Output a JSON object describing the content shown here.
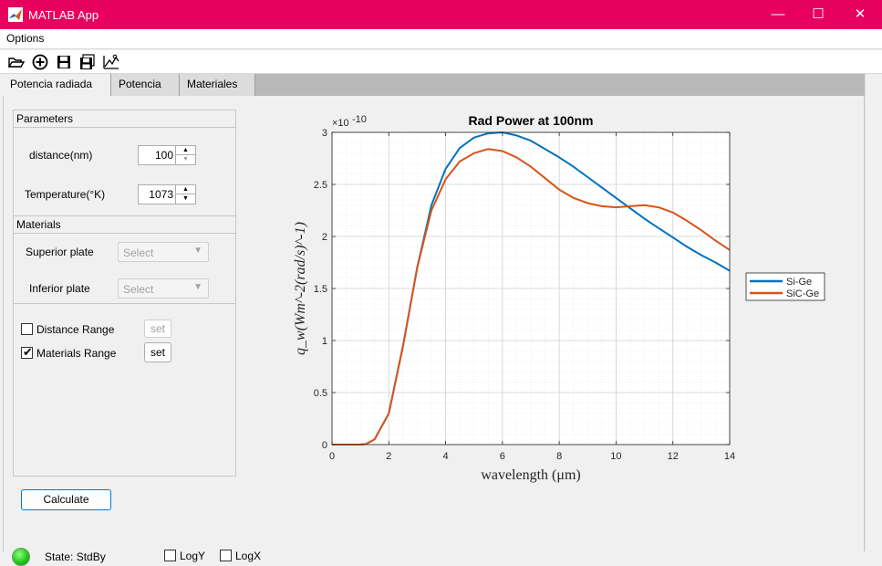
{
  "window": {
    "title": "MATLAB App",
    "controls": {
      "minimize": "—",
      "maximize": "☐",
      "close": "✕"
    }
  },
  "menu": {
    "options": "Options"
  },
  "toolbar": {
    "icons": [
      "open-icon",
      "add-icon",
      "save-icon",
      "save-all-icon",
      "plot-icon"
    ]
  },
  "tabs": [
    {
      "label": "Potencia radiada",
      "active": true
    },
    {
      "label": "Potencia",
      "active": false
    },
    {
      "label": "Materiales",
      "active": false
    }
  ],
  "parameters": {
    "title": "Parameters",
    "distance_label": "distance(nm)",
    "distance_value": "100",
    "temperature_label": "Temperature(°K)",
    "temperature_value": "1073"
  },
  "materials": {
    "title": "Materials",
    "superior_label": "Superior plate",
    "superior_value": "Select",
    "inferior_label": "Inferior plate",
    "inferior_value": "Select"
  },
  "ranges": {
    "distance_range_label": "Distance Range",
    "distance_range_checked": false,
    "distance_set": "set",
    "materials_range_label": "Materials Range",
    "materials_range_checked": true,
    "materials_set": "set"
  },
  "calculate_label": "Calculate",
  "status": {
    "text": "State: StdBy",
    "lamp_color": "#19c318"
  },
  "options": {
    "logy_label": "LogY",
    "logx_label": "LogX"
  },
  "chart_data": {
    "type": "line",
    "title": "Rad Power at 100nm",
    "xlabel": "wavelength (μm)",
    "ylabel": "q_w(Wm^-2(rad/s)^-1)",
    "y_multiplier": "×10",
    "y_multiplier_exp": "-10",
    "xlim": [
      0,
      14
    ],
    "ylim": [
      0,
      3
    ],
    "xticks": [
      0,
      2,
      4,
      6,
      8,
      10,
      12,
      14
    ],
    "yticks": [
      0,
      0.5,
      1,
      1.5,
      2,
      2.5,
      3
    ],
    "grid": true,
    "minor_grid": true,
    "legend_position": "outside-right",
    "series": [
      {
        "name": "Si-Ge",
        "color": "#0072bd",
        "x": [
          0,
          1,
          1.2,
          1.5,
          2,
          2.5,
          3,
          3.5,
          4,
          4.5,
          5,
          5.5,
          6,
          6.5,
          7,
          7.5,
          8,
          8.5,
          9,
          9.5,
          10,
          10.5,
          11,
          11.5,
          12,
          12.5,
          13,
          13.5,
          14
        ],
        "values": [
          0,
          0,
          0.005,
          0.05,
          0.3,
          0.95,
          1.7,
          2.3,
          2.65,
          2.85,
          2.95,
          2.99,
          3.0,
          2.97,
          2.92,
          2.84,
          2.76,
          2.67,
          2.57,
          2.47,
          2.37,
          2.27,
          2.17,
          2.08,
          1.99,
          1.9,
          1.82,
          1.75,
          1.67
        ]
      },
      {
        "name": "SiC-Ge",
        "color": "#d95319",
        "x": [
          0,
          1,
          1.2,
          1.5,
          2,
          2.5,
          3,
          3.5,
          4,
          4.5,
          5,
          5.5,
          6,
          6.5,
          7,
          7.5,
          8,
          8.5,
          9,
          9.5,
          10,
          10.5,
          11,
          11.5,
          12,
          12.5,
          13,
          13.5,
          14
        ],
        "values": [
          0,
          0,
          0.005,
          0.05,
          0.3,
          0.95,
          1.7,
          2.25,
          2.55,
          2.72,
          2.8,
          2.84,
          2.82,
          2.76,
          2.67,
          2.56,
          2.45,
          2.37,
          2.32,
          2.29,
          2.28,
          2.29,
          2.3,
          2.28,
          2.23,
          2.15,
          2.06,
          1.96,
          1.87
        ]
      }
    ]
  }
}
